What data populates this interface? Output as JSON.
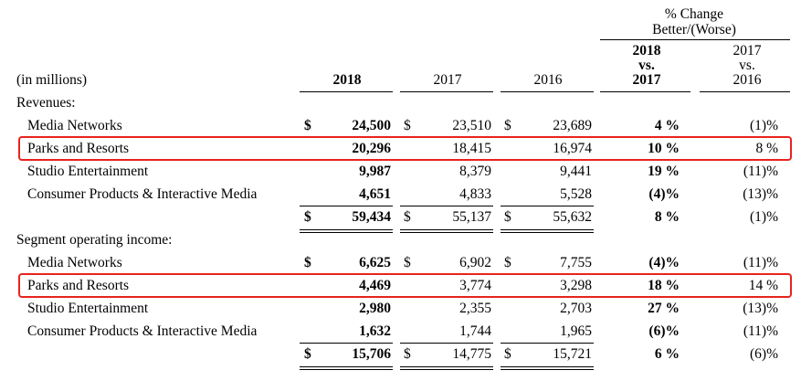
{
  "header": {
    "pct_change_line1": "% Change",
    "pct_change_line2": "Better/(Worse)",
    "col_2018_vs_2017": [
      "2018",
      "vs.",
      "2017"
    ],
    "col_2017_vs_2016": [
      "2017",
      "vs.",
      "2016"
    ],
    "in_millions": "(in millions)",
    "year_2018": "2018",
    "year_2017": "2017",
    "year_2016": "2016"
  },
  "colors": {
    "highlight": "#e8231f"
  },
  "sections": {
    "revenues": {
      "title": "Revenues:",
      "rows": [
        {
          "label": "Media Networks",
          "cur_2018": "$",
          "v2018": "24,500",
          "cur_2017": "$",
          "v2017": "23,510",
          "cur_2016": "$",
          "v2016": "23,689",
          "chg_18_17": "4 %",
          "chg_17_16": "(1)%"
        },
        {
          "label": "Parks and Resorts",
          "cur_2018": "",
          "v2018": "20,296",
          "cur_2017": "",
          "v2017": "18,415",
          "cur_2016": "",
          "v2016": "16,974",
          "chg_18_17": "10 %",
          "chg_17_16": "8 %"
        },
        {
          "label": "Studio Entertainment",
          "cur_2018": "",
          "v2018": "9,987",
          "cur_2017": "",
          "v2017": "8,379",
          "cur_2016": "",
          "v2016": "9,441",
          "chg_18_17": "19 %",
          "chg_17_16": "(11)%"
        },
        {
          "label": "Consumer Products & Interactive Media",
          "cur_2018": "",
          "v2018": "4,651",
          "cur_2017": "",
          "v2017": "4,833",
          "cur_2016": "",
          "v2016": "5,528",
          "chg_18_17": "(4)%",
          "chg_17_16": "(13)%"
        }
      ],
      "total": {
        "cur_2018": "$",
        "v2018": "59,434",
        "cur_2017": "$",
        "v2017": "55,137",
        "cur_2016": "$",
        "v2016": "55,632",
        "chg_18_17": "8 %",
        "chg_17_16": "(1)%"
      }
    },
    "operating_income": {
      "title": "Segment operating income:",
      "rows": [
        {
          "label": "Media Networks",
          "cur_2018": "$",
          "v2018": "6,625",
          "cur_2017": "$",
          "v2017": "6,902",
          "cur_2016": "$",
          "v2016": "7,755",
          "chg_18_17": "(4)%",
          "chg_17_16": "(11)%"
        },
        {
          "label": "Parks and Resorts",
          "cur_2018": "",
          "v2018": "4,469",
          "cur_2017": "",
          "v2017": "3,774",
          "cur_2016": "",
          "v2016": "3,298",
          "chg_18_17": "18 %",
          "chg_17_16": "14 %"
        },
        {
          "label": "Studio Entertainment",
          "cur_2018": "",
          "v2018": "2,980",
          "cur_2017": "",
          "v2017": "2,355",
          "cur_2016": "",
          "v2016": "2,703",
          "chg_18_17": "27 %",
          "chg_17_16": "(13)%"
        },
        {
          "label": "Consumer Products & Interactive Media",
          "cur_2018": "",
          "v2018": "1,632",
          "cur_2017": "",
          "v2017": "1,744",
          "cur_2016": "",
          "v2016": "1,965",
          "chg_18_17": "(6)%",
          "chg_17_16": "(11)%"
        }
      ],
      "total": {
        "cur_2018": "$",
        "v2018": "15,706",
        "cur_2017": "$",
        "v2017": "14,775",
        "cur_2016": "$",
        "v2016": "15,721",
        "chg_18_17": "6 %",
        "chg_17_16": "(6)%"
      }
    }
  }
}
